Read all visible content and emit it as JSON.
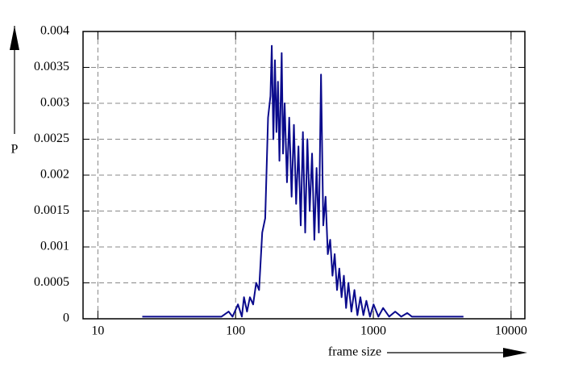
{
  "chart_data": {
    "type": "line",
    "xlabel": "frame size",
    "ylabel": "P",
    "xscale": "log",
    "grid": true,
    "xlim": [
      7.8,
      12600
    ],
    "ylim": [
      0,
      0.004
    ],
    "xticks": [
      10,
      100,
      1000,
      10000
    ],
    "yticks": [
      0,
      0.0005,
      0.001,
      0.0015,
      0.002,
      0.0025,
      0.003,
      0.0035,
      0.004
    ],
    "series": [
      {
        "color": "#0a0a8c",
        "x": [
          21,
          79,
          89,
          95,
          104,
          111,
          115,
          121,
          127,
          134,
          141,
          148,
          156,
          164,
          172,
          179,
          183,
          188,
          193,
          198,
          203,
          208,
          216,
          221,
          227,
          236,
          245,
          255,
          265,
          275,
          286,
          297,
          308,
          320,
          332,
          345,
          359,
          373,
          387,
          402,
          417,
          433,
          450,
          467,
          486,
          505,
          524,
          545,
          566,
          588,
          611,
          634,
          659,
          693,
          729,
          766,
          805,
          847,
          890,
          945,
          1004,
          1088,
          1178,
          1303,
          1441,
          1594,
          1763,
          1904,
          4510
        ],
        "values": [
          3e-05,
          3e-05,
          0.0001,
          3e-05,
          0.0002,
          3e-05,
          0.0003,
          0.0001,
          0.0003,
          0.0002,
          0.0005,
          0.0004,
          0.0012,
          0.0014,
          0.0028,
          0.0031,
          0.0038,
          0.0025,
          0.0036,
          0.0026,
          0.0033,
          0.0022,
          0.0037,
          0.0023,
          0.003,
          0.0019,
          0.0028,
          0.0017,
          0.0027,
          0.0016,
          0.0024,
          0.0013,
          0.0026,
          0.0012,
          0.0025,
          0.0015,
          0.0023,
          0.0011,
          0.0021,
          0.0012,
          0.0034,
          0.0013,
          0.0017,
          0.0009,
          0.0011,
          0.0006,
          0.0009,
          0.0004,
          0.0007,
          0.0003,
          0.0006,
          0.00015,
          0.0005,
          0.0001,
          0.0004,
          5e-05,
          0.0003,
          5e-05,
          0.00025,
          3e-05,
          0.0002,
          3e-05,
          0.00015,
          3e-05,
          0.0001,
          3e-05,
          8e-05,
          3e-05,
          3e-05
        ]
      }
    ]
  }
}
